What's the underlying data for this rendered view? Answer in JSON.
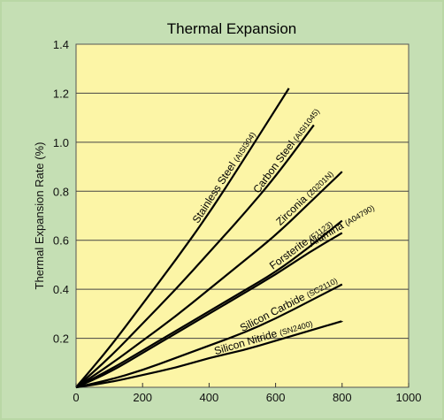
{
  "chart_data": {
    "type": "line",
    "title": "Thermal Expansion",
    "xlabel": "",
    "ylabel": "Thermal Expansion Rate (%)",
    "xlim": [
      0,
      1000
    ],
    "ylim": [
      0,
      1.4
    ],
    "x_ticks": [
      "0",
      "200",
      "400",
      "600",
      "800",
      "1000"
    ],
    "y_ticks": [
      "0.2",
      "0.4",
      "0.6",
      "0.8",
      "1.0",
      "1.2",
      "1.4"
    ],
    "grid": "horizontal",
    "colors": {
      "plot_background": "#fcf5a6",
      "page_background": "#c5dfb4",
      "line": "#000000"
    },
    "series": [
      {
        "name": "Stainless Steel",
        "code": "(AISI304)",
        "x": [
          0,
          100,
          200,
          300,
          400,
          500,
          640
        ],
        "y": [
          0,
          0.16,
          0.34,
          0.52,
          0.71,
          0.92,
          1.22
        ]
      },
      {
        "name": "Carbon Steel",
        "code": "(AISI1045)",
        "x": [
          0,
          100,
          200,
          300,
          400,
          500,
          600,
          715
        ],
        "y": [
          0,
          0.12,
          0.26,
          0.4,
          0.55,
          0.7,
          0.86,
          1.07
        ]
      },
      {
        "name": "Zirconia",
        "code": "(Z0201N)",
        "x": [
          0,
          100,
          200,
          300,
          400,
          500,
          600,
          700,
          800
        ],
        "y": [
          0,
          0.09,
          0.19,
          0.29,
          0.4,
          0.51,
          0.62,
          0.75,
          0.88
        ]
      },
      {
        "name": "Forsterite",
        "code": "(F1123)",
        "x": [
          0,
          100,
          200,
          300,
          400,
          500,
          600,
          700,
          800
        ],
        "y": [
          0,
          0.07,
          0.15,
          0.23,
          0.31,
          0.39,
          0.47,
          0.57,
          0.68
        ]
      },
      {
        "name": "Alumina",
        "code": "(A04790)",
        "x": [
          0,
          100,
          200,
          300,
          400,
          500,
          600,
          700,
          800
        ],
        "y": [
          0,
          0.06,
          0.14,
          0.22,
          0.3,
          0.38,
          0.46,
          0.55,
          0.63
        ]
      },
      {
        "name": "Silicon Carbide",
        "code": "(SC2110)",
        "x": [
          0,
          100,
          200,
          300,
          400,
          500,
          600,
          700,
          800
        ],
        "y": [
          0,
          0.03,
          0.07,
          0.12,
          0.17,
          0.22,
          0.28,
          0.35,
          0.42
        ]
      },
      {
        "name": "Silicon Nitride",
        "code": "(SN2400)",
        "x": [
          0,
          100,
          200,
          300,
          400,
          500,
          600,
          700,
          800
        ],
        "y": [
          0,
          0.02,
          0.05,
          0.08,
          0.12,
          0.15,
          0.19,
          0.23,
          0.27
        ]
      }
    ]
  }
}
